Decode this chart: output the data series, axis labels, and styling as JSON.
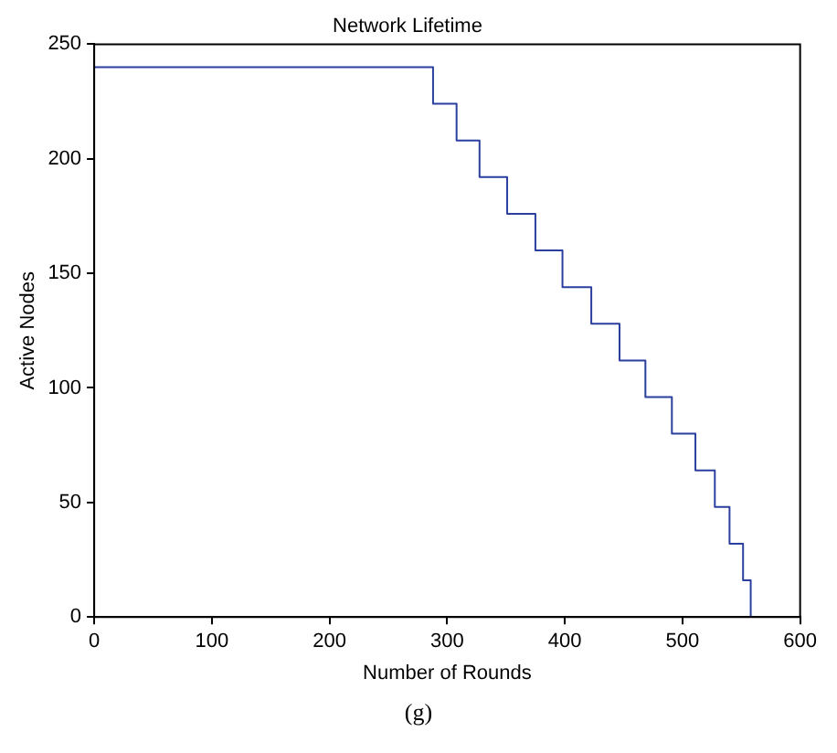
{
  "chart_data": {
    "type": "step",
    "title": "Network Lifetime",
    "xlabel": "Number of Rounds",
    "ylabel": "Active Nodes",
    "annotations": [
      "(g)"
    ],
    "x": [
      0,
      288,
      308,
      327.5,
      351,
      375,
      398,
      422.5,
      446.5,
      468.5,
      491,
      511,
      527.5,
      540,
      551.5,
      558
    ],
    "series": [
      {
        "color": "#2b3f9e",
        "values": [
          240,
          224,
          208,
          192,
          176,
          160,
          144,
          128,
          112,
          96,
          80,
          64,
          48,
          32,
          16,
          0
        ]
      }
    ],
    "xlim": [
      0,
      600
    ],
    "xticks": [
      0,
      100,
      200,
      300,
      400,
      500,
      600
    ],
    "ylim": [
      0,
      250
    ],
    "yticks": [
      0,
      50,
      100,
      150,
      200,
      250
    ],
    "grid": false,
    "legend": false
  }
}
